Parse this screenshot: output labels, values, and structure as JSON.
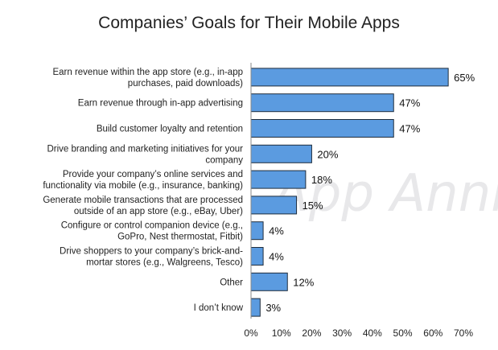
{
  "chart_data": {
    "type": "bar",
    "orientation": "horizontal",
    "title": "Companies’ Goals for Their Mobile Apps",
    "watermark": "App Annie",
    "bar_color": "#5b9be0",
    "bar_edge_color": "#1f2d3d",
    "categories": [
      [
        "Earn revenue within the app store (e.g., in-app",
        "purchases, paid downloads)"
      ],
      [
        "Earn revenue through in-app advertising"
      ],
      [
        "Build customer loyalty and retention"
      ],
      [
        "Drive branding and marketing initiatives for your",
        "company"
      ],
      [
        "Provide your company’s online services and",
        "functionality via mobile (e.g., insurance, banking)"
      ],
      [
        "Generate mobile transactions that are processed",
        "outside of an app store (e.g., eBay, Uber)"
      ],
      [
        "Configure or control companion device (e.g.,",
        "GoPro, Nest thermostat, Fitbit)"
      ],
      [
        "Drive shoppers to your company’s brick-and-",
        "mortar stores (e.g., Walgreens, Tesco)"
      ],
      [
        "Other"
      ],
      [
        "I don’t know"
      ]
    ],
    "values": [
      65,
      47,
      47,
      20,
      18,
      15,
      4,
      4,
      12,
      3
    ],
    "value_labels": [
      "65%",
      "47%",
      "47%",
      "20%",
      "18%",
      "15%",
      "4%",
      "4%",
      "12%",
      "3%"
    ],
    "xlim": [
      0,
      70
    ],
    "x_ticks": [
      0,
      10,
      20,
      30,
      40,
      50,
      60,
      70
    ],
    "x_tick_labels": [
      "0%",
      "10%",
      "20%",
      "30%",
      "40%",
      "50%",
      "60%",
      "70%"
    ],
    "grid": false
  }
}
